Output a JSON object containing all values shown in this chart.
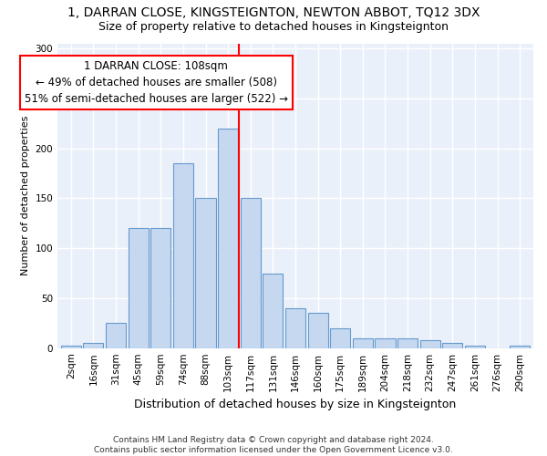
{
  "title": "1, DARRAN CLOSE, KINGSTEIGNTON, NEWTON ABBOT, TQ12 3DX",
  "subtitle": "Size of property relative to detached houses in Kingsteignton",
  "xlabel": "Distribution of detached houses by size in Kingsteignton",
  "ylabel": "Number of detached properties",
  "categories": [
    "2sqm",
    "16sqm",
    "31sqm",
    "45sqm",
    "59sqm",
    "74sqm",
    "88sqm",
    "103sqm",
    "117sqm",
    "131sqm",
    "146sqm",
    "160sqm",
    "175sqm",
    "189sqm",
    "204sqm",
    "218sqm",
    "232sqm",
    "247sqm",
    "261sqm",
    "276sqm",
    "290sqm"
  ],
  "values": [
    2,
    5,
    25,
    120,
    120,
    185,
    150,
    220,
    150,
    75,
    40,
    35,
    20,
    10,
    10,
    10,
    8,
    5,
    2,
    0,
    2
  ],
  "bar_color": "#c5d8f0",
  "bar_edge_color": "#6699cc",
  "vline_color": "red",
  "vline_index": 7.5,
  "annotation_text": "1 DARRAN CLOSE: 108sqm\n← 49% of detached houses are smaller (508)\n51% of semi-detached houses are larger (522) →",
  "annotation_box_color": "white",
  "annotation_box_edge": "red",
  "ylim": [
    0,
    305
  ],
  "yticks": [
    0,
    50,
    100,
    150,
    200,
    250,
    300
  ],
  "bg_color": "#eaf0fa",
  "footer": "Contains HM Land Registry data © Crown copyright and database right 2024.\nContains public sector information licensed under the Open Government Licence v3.0.",
  "title_fontsize": 10,
  "subtitle_fontsize": 9,
  "xlabel_fontsize": 9,
  "ylabel_fontsize": 8,
  "tick_fontsize": 7.5,
  "annot_fontsize": 8.5,
  "footer_fontsize": 6.5
}
